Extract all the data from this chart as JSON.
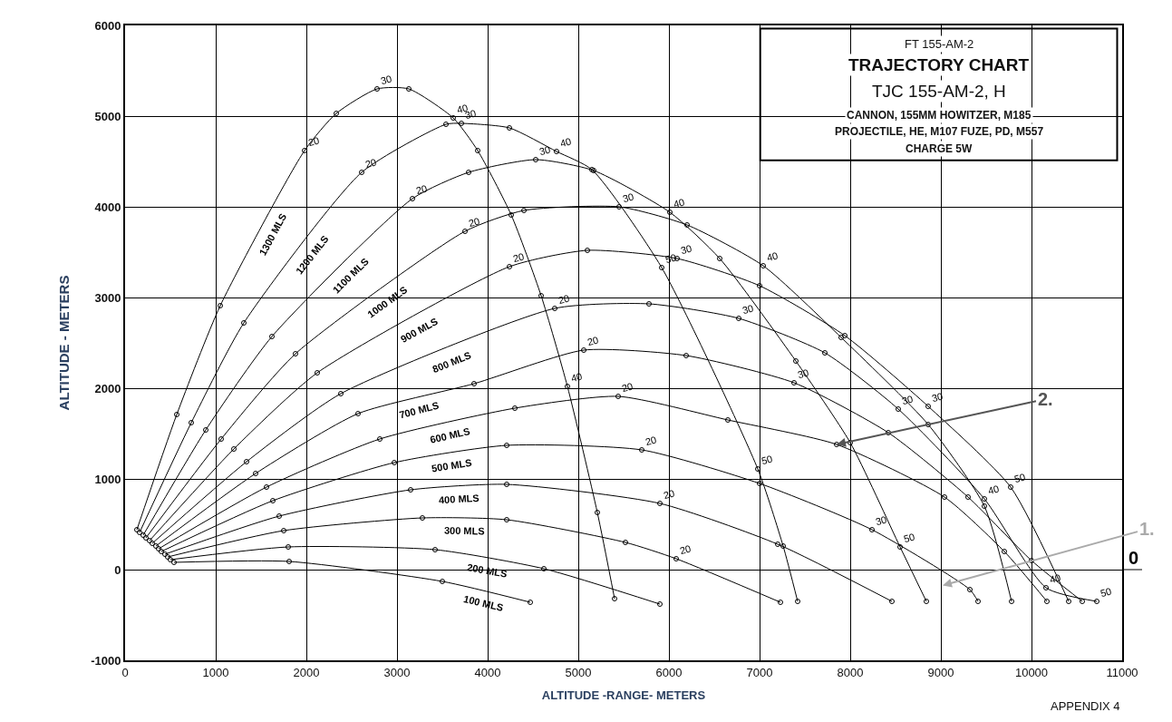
{
  "chart_data": {
    "type": "line",
    "title": "TRAJECTORY CHART",
    "subtitle": "TJC 155-AM-2, H",
    "xlabel": "ALTITUDE -RANGE- METERS",
    "ylabel": "ALTITUDE - METERS",
    "xlim": [
      0,
      11000
    ],
    "ylim": [
      -1000,
      6000
    ],
    "xticks": [
      0,
      1000,
      2000,
      3000,
      4000,
      5000,
      6000,
      7000,
      8000,
      9000,
      10000,
      11000
    ],
    "yticks": [
      -1000,
      0,
      1000,
      2000,
      3000,
      4000,
      5000,
      6000
    ],
    "grid": true,
    "legend": false,
    "marker": "circle",
    "line_style": "solid",
    "series": [
      {
        "name": "1300 MLS",
        "color": "#000000",
        "x": [
          130,
          570,
          1050,
          1980,
          2330,
          2780,
          3130,
          3620,
          3890,
          4260,
          4590,
          4880,
          5210,
          5400
        ],
        "values": [
          440,
          1710,
          2910,
          4620,
          5030,
          5300,
          5300,
          4980,
          4620,
          3910,
          3020,
          2020,
          630,
          -320
        ]
      },
      {
        "name": "1200 MLS",
        "color": "#000000",
        "x": [
          160,
          730,
          1310,
          2610,
          3540,
          3710,
          4240,
          4760,
          5150,
          5920,
          6980,
          7260,
          7420
        ],
        "values": [
          410,
          1620,
          2720,
          4380,
          4910,
          4920,
          4870,
          4610,
          4410,
          3330,
          1110,
          260,
          -350
        ]
      },
      {
        "name": "1100 MLS",
        "color": "#000000",
        "x": [
          200,
          890,
          1620,
          3170,
          3790,
          4530,
          5170,
          6010,
          6560,
          7400,
          8000,
          8550,
          8840
        ],
        "values": [
          380,
          1540,
          2570,
          4090,
          4380,
          4520,
          4400,
          3940,
          3430,
          2300,
          1400,
          250,
          -350
        ]
      },
      {
        "name": "1000 MLS",
        "color": "#000000",
        "x": [
          230,
          1060,
          1880,
          3750,
          4400,
          5450,
          6200,
          7040,
          7900,
          8860,
          9480,
          9780
        ],
        "values": [
          350,
          1440,
          2380,
          3730,
          3960,
          4000,
          3800,
          3350,
          2560,
          1600,
          700,
          -350
        ]
      },
      {
        "name": "900 MLS",
        "color": "#000000",
        "x": [
          270,
          1200,
          2120,
          4240,
          5100,
          6090,
          7000,
          7940,
          8860,
          9770,
          10410
        ],
        "values": [
          320,
          1330,
          2170,
          3340,
          3520,
          3430,
          3130,
          2580,
          1800,
          910,
          -350
        ]
      },
      {
        "name": "800 MLS",
        "color": "#000000",
        "x": [
          300,
          1340,
          2380,
          4740,
          5780,
          6770,
          7720,
          8530,
          9480,
          10160,
          10720
        ],
        "values": [
          290,
          1190,
          1940,
          2880,
          2930,
          2770,
          2390,
          1770,
          780,
          -200,
          -350
        ]
      },
      {
        "name": "700 MLS",
        "color": "#000000",
        "x": [
          340,
          1440,
          2570,
          3850,
          5060,
          6190,
          7380,
          8420,
          9300,
          10000,
          10560
        ],
        "values": [
          260,
          1060,
          1720,
          2050,
          2420,
          2360,
          2060,
          1510,
          800,
          100,
          -350
        ]
      },
      {
        "name": "600 MLS",
        "color": "#000000",
        "x": [
          370,
          1560,
          2810,
          4300,
          5440,
          6650,
          7850,
          9040,
          9700,
          10170
        ],
        "values": [
          230,
          910,
          1440,
          1780,
          1910,
          1650,
          1380,
          800,
          200,
          -350
        ]
      },
      {
        "name": "500 MLS",
        "color": "#000000",
        "x": [
          400,
          1630,
          2970,
          4210,
          5700,
          7000,
          8240,
          9320,
          9410
        ],
        "values": [
          200,
          760,
          1180,
          1370,
          1320,
          950,
          440,
          -220,
          -350
        ]
      },
      {
        "name": "400 MLS",
        "color": "#000000",
        "x": [
          440,
          1700,
          3150,
          4210,
          5900,
          7200,
          8460
        ],
        "values": [
          170,
          590,
          880,
          940,
          730,
          280,
          -350
        ]
      },
      {
        "name": "300 MLS",
        "color": "#000000",
        "x": [
          470,
          1750,
          3280,
          4210,
          5520,
          6080,
          7230
        ],
        "values": [
          140,
          430,
          570,
          550,
          300,
          120,
          -360
        ]
      },
      {
        "name": "200 MLS",
        "color": "#000000",
        "x": [
          500,
          1800,
          3420,
          4620,
          5900
        ],
        "values": [
          110,
          250,
          220,
          10,
          -380
        ]
      },
      {
        "name": "100 MLS",
        "color": "#000000",
        "x": [
          540,
          1810,
          3500,
          4470
        ],
        "values": [
          80,
          90,
          -130,
          -360
        ]
      }
    ],
    "annotations": [
      "FT 155-AM-2",
      "CANNON, 155MM HOWITZER, M185",
      "PROJECTILE, HE, M107 FUZE, PD, M557",
      "CHARGE 5W",
      "APPENDIX 4",
      "0",
      {
        "text": "2.",
        "x": 7850,
        "y": 1380
      },
      "1.",
      {
        "text": "20",
        "x": 1980,
        "y": 4620
      },
      {
        "text": "20",
        "x": 2610,
        "y": 4380
      },
      {
        "text": "20",
        "x": 3170,
        "y": 4090
      },
      {
        "text": "20",
        "x": 3750,
        "y": 3730
      },
      {
        "text": "20",
        "x": 4240,
        "y": 3340
      },
      {
        "text": "20",
        "x": 4740,
        "y": 2880
      },
      {
        "text": "20",
        "x": 5060,
        "y": 2420
      },
      {
        "text": "20",
        "x": 5440,
        "y": 1910
      },
      {
        "text": "20",
        "x": 5700,
        "y": 1320
      },
      {
        "text": "20",
        "x": 5900,
        "y": 730
      },
      {
        "text": "20",
        "x": 6080,
        "y": 120
      },
      {
        "text": "30",
        "x": 2780,
        "y": 5300
      },
      {
        "text": "30",
        "x": 3710,
        "y": 4920
      },
      {
        "text": "30",
        "x": 4530,
        "y": 4520
      },
      {
        "text": "30",
        "x": 5450,
        "y": 4000
      },
      {
        "text": "30",
        "x": 6090,
        "y": 3430
      },
      {
        "text": "30",
        "x": 6770,
        "y": 2770
      },
      {
        "text": "30",
        "x": 7380,
        "y": 2060
      },
      {
        "text": "30",
        "x": 8240,
        "y": 440
      },
      {
        "text": "30",
        "x": 8530,
        "y": 1770
      },
      {
        "text": "30",
        "x": 8860,
        "y": 1800
      },
      {
        "text": "40",
        "x": 3620,
        "y": 4980
      },
      {
        "text": "40",
        "x": 4760,
        "y": 4610
      },
      {
        "text": "40",
        "x": 6010,
        "y": 3940
      },
      {
        "text": "40",
        "x": 7040,
        "y": 3350
      },
      {
        "text": "40",
        "x": 4880,
        "y": 2020
      },
      {
        "text": "40",
        "x": 9480,
        "y": 780
      },
      {
        "text": "40",
        "x": 10160,
        "y": -200
      },
      {
        "text": "50",
        "x": 5920,
        "y": 3330
      },
      {
        "text": "50",
        "x": 6980,
        "y": 1110
      },
      {
        "text": "50",
        "x": 8550,
        "y": 250
      },
      {
        "text": "50",
        "x": 9770,
        "y": 910
      },
      {
        "text": "50",
        "x": 10720,
        "y": -350
      }
    ]
  }
}
